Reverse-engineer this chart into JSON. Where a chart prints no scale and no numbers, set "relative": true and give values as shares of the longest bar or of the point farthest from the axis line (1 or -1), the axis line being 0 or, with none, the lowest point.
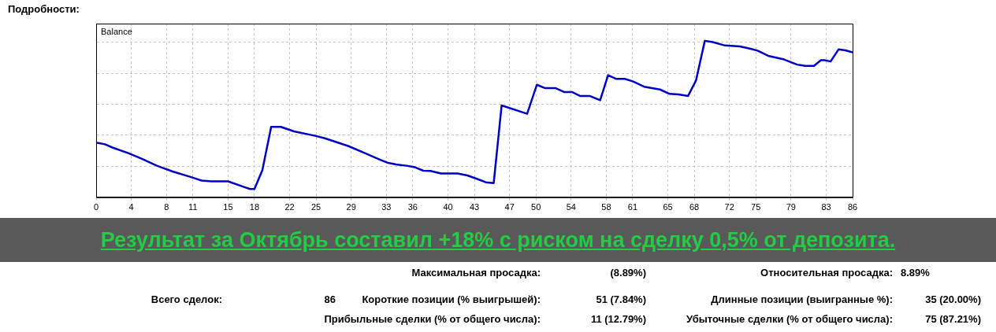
{
  "chart_data": {
    "type": "line",
    "title": "Подробности:",
    "relative": true,
    "grid": true,
    "legend": "top left",
    "xlim": [
      0,
      86
    ],
    "xticks": [
      0,
      4,
      8,
      11,
      15,
      18,
      22,
      25,
      29,
      33,
      36,
      40,
      43,
      47,
      50,
      54,
      58,
      61,
      65,
      68,
      72,
      75,
      79,
      83,
      86
    ],
    "series": [
      {
        "name": "Balance",
        "color": "#0000c0",
        "x": [
          0,
          1,
          1.9,
          3.6,
          5.1,
          6.9,
          8.7,
          10.8,
          12,
          13.1,
          15,
          16.8,
          17.5,
          18,
          18.9,
          19.9,
          21,
          22.5,
          24.9,
          26,
          28.7,
          30.5,
          32.3,
          33.2,
          34.1,
          35.3,
          36.2,
          37.2,
          38,
          39.2,
          41.1,
          42.2,
          43.4,
          44.3,
          45.2,
          46.1,
          49,
          50.1,
          51,
          52.2,
          53.2,
          54.1,
          55,
          56.1,
          57.3,
          58.2,
          59.1,
          60.1,
          61,
          62.3,
          64.1,
          65.2,
          66.2,
          67.3,
          68.2,
          69.2,
          70.1,
          71.5,
          73.2,
          74.3,
          75.2,
          76.4,
          78.2,
          79.7,
          80.6,
          81.6,
          82.4,
          82.8,
          83.5,
          84.4,
          85.2,
          86
        ],
        "values": [
          0.35,
          0.339,
          0.317,
          0.284,
          0.248,
          0.202,
          0.165,
          0.129,
          0.107,
          0.102,
          0.102,
          0.066,
          0.053,
          0.053,
          0.174,
          0.45,
          0.45,
          0.421,
          0.393,
          0.377,
          0.327,
          0.284,
          0.24,
          0.22,
          0.21,
          0.202,
          0.193,
          0.17,
          0.169,
          0.152,
          0.152,
          0.14,
          0.116,
          0.096,
          0.091,
          0.587,
          0.534,
          0.719,
          0.698,
          0.698,
          0.673,
          0.673,
          0.648,
          0.648,
          0.62,
          0.78,
          0.757,
          0.757,
          0.741,
          0.707,
          0.689,
          0.661,
          0.658,
          0.648,
          0.747,
          1,
          0.992,
          0.97,
          0.964,
          0.95,
          0.937,
          0.904,
          0.881,
          0.848,
          0.84,
          0.84,
          0.876,
          0.876,
          0.868,
          0.945,
          0.939,
          0.926
        ]
      }
    ],
    "annotations": [
      "Результат за Октябрь составил +18% с риском на сделку 0,5% от депозита.",
      "Максимальная просадка:",
      "(8.89%)",
      "Относительная просадка:",
      "8.89%",
      "Всего сделок:",
      "86",
      "Короткие позиции (% выигрышей):",
      "51 (7.84%)",
      "Длинные позиции (выигранные %):",
      "35 (20.00%)",
      "Прибыльные сделки (% от общего числа):",
      "11 (12.79%)",
      "Убыточные сделки (% от общего числа):",
      "75 (87.21%)"
    ]
  }
}
